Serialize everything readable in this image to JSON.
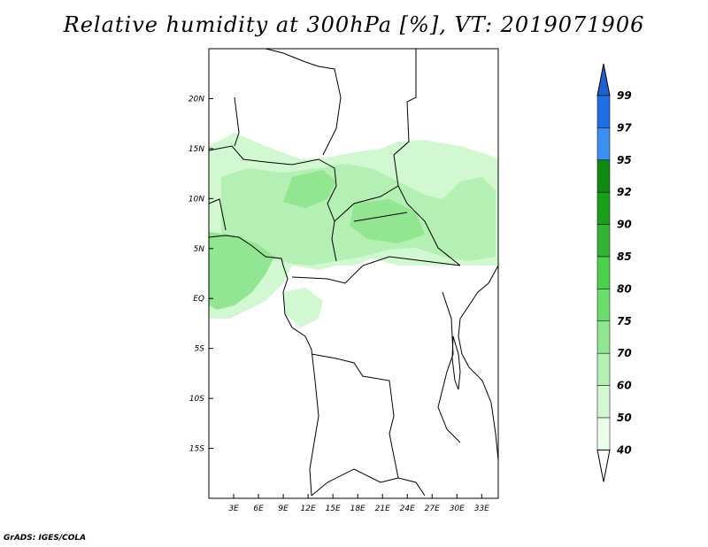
{
  "title": "Relative humidity at 300hPa [%], VT: 2019071906",
  "credit": "GrADS: IGES/COLA",
  "map": {
    "lat_labels": [
      "20N",
      "15N",
      "10N",
      "5N",
      "EQ",
      "5S",
      "10S",
      "15S"
    ],
    "lon_labels": [
      "3E",
      "6E",
      "9E",
      "12E",
      "15E",
      "18E",
      "21E",
      "24E",
      "27E",
      "30E",
      "33E"
    ],
    "lat_values": [
      20,
      15,
      10,
      5,
      0,
      -5,
      -10,
      -15
    ],
    "lon_values": [
      3,
      6,
      9,
      12,
      15,
      18,
      21,
      24,
      27,
      30,
      33
    ],
    "extent": {
      "lon_min": 0,
      "lon_max": 35,
      "lat_min": -20,
      "lat_max": 25
    }
  },
  "colorbar": {
    "levels": [
      "99",
      "97",
      "95",
      "92",
      "90",
      "85",
      "80",
      "75",
      "70",
      "60",
      "50",
      "40"
    ],
    "colors": [
      "#1e5fd2",
      "#1e6ee6",
      "#3c8ef0",
      "#0f8c0f",
      "#19a019",
      "#32b432",
      "#4bd24b",
      "#6cdc6c",
      "#92e692",
      "#b4f0b4",
      "#d2f8d2",
      "#ebffeb"
    ],
    "top_arrow_color": "#1e5fd2",
    "bottom_arrow_color": "#ffffff"
  }
}
